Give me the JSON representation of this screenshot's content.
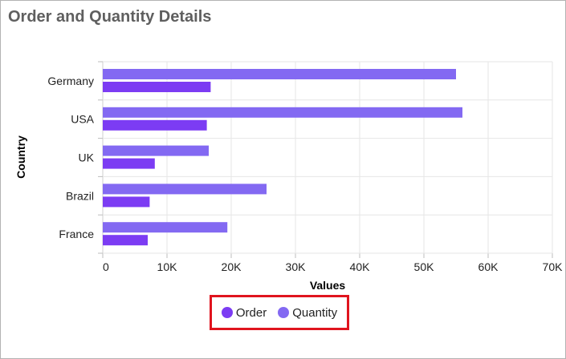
{
  "title": "Order and Quantity Details",
  "colors": {
    "order": "#7c3cf3",
    "quantity": "#8369f2"
  },
  "chart_data": {
    "type": "bar",
    "orientation": "horizontal",
    "categories": [
      "Germany",
      "USA",
      "UK",
      "Brazil",
      "France"
    ],
    "series": [
      {
        "name": "Quantity",
        "values": [
          55000,
          56000,
          16500,
          25500,
          19400
        ]
      },
      {
        "name": "Order",
        "values": [
          16800,
          16200,
          8100,
          7300,
          7000
        ]
      }
    ],
    "xlabel": "Values",
    "ylabel": "Country",
    "xlim": [
      0,
      70000
    ],
    "xticks": [
      "0",
      "10K",
      "20K",
      "30K",
      "40K",
      "50K",
      "60K",
      "70K"
    ],
    "xtick_values": [
      0,
      10000,
      20000,
      30000,
      40000,
      50000,
      60000,
      70000
    ],
    "grid": true,
    "legend_position": "bottom"
  },
  "legend": {
    "items": [
      {
        "label": "Order",
        "color": "#7c3cf3"
      },
      {
        "label": "Quantity",
        "color": "#8369f2"
      }
    ]
  }
}
